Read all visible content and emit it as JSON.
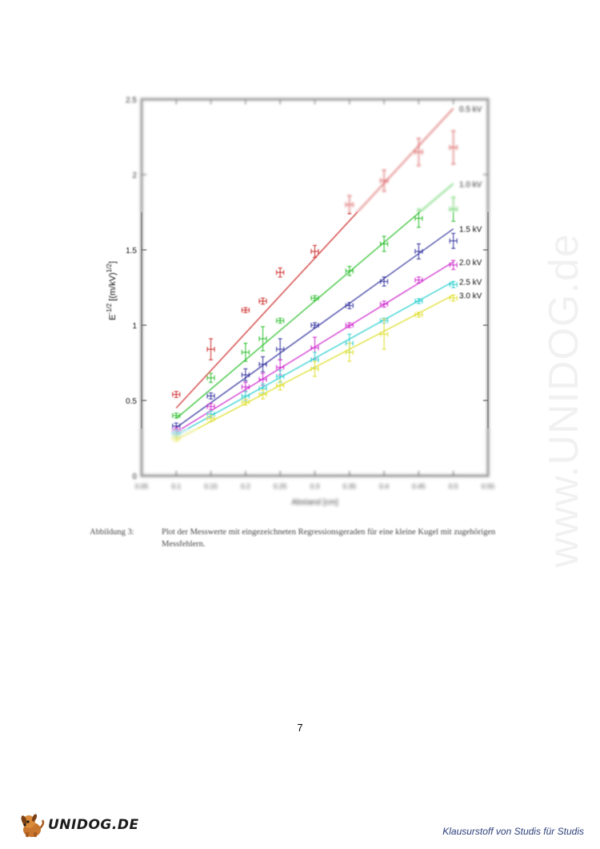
{
  "chart_data": {
    "type": "scatter",
    "xlabel": "Abstand [cm]",
    "ylabel": "E^(-1/2) [(m/kV)^(1/2)]",
    "xlim": [
      0.05,
      0.55
    ],
    "ylim": [
      0,
      2.5
    ],
    "xticks": [
      "0.05",
      "0.1",
      "0.15",
      "0.2",
      "0.25",
      "0.3",
      "0.35",
      "0.4",
      "0.45",
      "0.5",
      "0.55"
    ],
    "yticks": [
      "0",
      "0.5",
      "1",
      "1.5",
      "2",
      "2.5"
    ],
    "grid": false,
    "legend": "right, labels next to line ends",
    "series": [
      {
        "name": "0.5 kV",
        "color": "#cc2222",
        "x": [
          0.1,
          0.15,
          0.2,
          0.225,
          0.25,
          0.3,
          0.35,
          0.4,
          0.45,
          0.5
        ],
        "y": [
          0.54,
          0.84,
          1.1,
          1.16,
          1.35,
          1.49,
          1.8,
          1.96,
          2.15,
          2.18
        ],
        "yerr": [
          0.02,
          0.07,
          0.01,
          0.02,
          0.03,
          0.04,
          0.06,
          0.07,
          0.09,
          0.11
        ],
        "fit": [
          [
            0.1,
            0.45
          ],
          [
            0.5,
            2.44
          ]
        ]
      },
      {
        "name": "1.0 kV",
        "color": "#22bb22",
        "x": [
          0.1,
          0.15,
          0.2,
          0.225,
          0.25,
          0.3,
          0.35,
          0.4,
          0.45,
          0.5
        ],
        "y": [
          0.4,
          0.65,
          0.82,
          0.91,
          1.03,
          1.18,
          1.36,
          1.54,
          1.71,
          1.77
        ],
        "yerr": [
          0.01,
          0.03,
          0.06,
          0.08,
          0.01,
          0.01,
          0.03,
          0.05,
          0.06,
          0.08
        ],
        "fit": [
          [
            0.1,
            0.38
          ],
          [
            0.5,
            1.94
          ]
        ]
      },
      {
        "name": "1.5 kV",
        "color": "#2a2a9a",
        "x": [
          0.1,
          0.15,
          0.2,
          0.225,
          0.25,
          0.3,
          0.35,
          0.4,
          0.45,
          0.5
        ],
        "y": [
          0.33,
          0.53,
          0.67,
          0.74,
          0.84,
          1.0,
          1.13,
          1.29,
          1.49,
          1.56
        ],
        "yerr": [
          0.02,
          0.02,
          0.04,
          0.05,
          0.07,
          0.01,
          0.02,
          0.03,
          0.05,
          0.05
        ],
        "fit": [
          [
            0.1,
            0.32
          ],
          [
            0.5,
            1.64
          ]
        ]
      },
      {
        "name": "2.0 kV",
        "color": "#cc22cc",
        "x": [
          0.1,
          0.15,
          0.2,
          0.225,
          0.25,
          0.3,
          0.35,
          0.4,
          0.45,
          0.5
        ],
        "y": [
          0.3,
          0.46,
          0.59,
          0.64,
          0.72,
          0.85,
          1.0,
          1.14,
          1.3,
          1.4
        ],
        "yerr": [
          0.02,
          0.02,
          0.03,
          0.04,
          0.05,
          0.07,
          0.01,
          0.02,
          0.02,
          0.03
        ],
        "fit": [
          [
            0.1,
            0.29
          ],
          [
            0.5,
            1.42
          ]
        ]
      },
      {
        "name": "2.5 kV",
        "color": "#22cccc",
        "x": [
          0.1,
          0.15,
          0.2,
          0.225,
          0.25,
          0.3,
          0.35,
          0.4,
          0.45,
          0.5
        ],
        "y": [
          0.28,
          0.41,
          0.53,
          0.58,
          0.66,
          0.77,
          0.88,
          1.03,
          1.16,
          1.27
        ],
        "yerr": [
          0.02,
          0.02,
          0.03,
          0.03,
          0.04,
          0.05,
          0.06,
          0.01,
          0.01,
          0.02
        ],
        "fit": [
          [
            0.1,
            0.27
          ],
          [
            0.5,
            1.29
          ]
        ]
      },
      {
        "name": "3.0 kV",
        "color": "#dddd22",
        "x": [
          0.1,
          0.15,
          0.2,
          0.225,
          0.25,
          0.3,
          0.35,
          0.4,
          0.45,
          0.5
        ],
        "y": [
          0.25,
          0.38,
          0.49,
          0.54,
          0.6,
          0.71,
          0.82,
          0.94,
          1.07,
          1.18
        ],
        "yerr": [
          0.02,
          0.02,
          0.02,
          0.03,
          0.03,
          0.05,
          0.06,
          0.1,
          0.01,
          0.02
        ],
        "fit": [
          [
            0.1,
            0.24
          ],
          [
            0.5,
            1.2
          ]
        ]
      }
    ]
  },
  "caption": {
    "label": "Abbildung 3:",
    "text": "Plot der Messwerte mit eingezeichneten Regressionsgeraden für eine kleine Kugel mit zugehörigen Messfehlern."
  },
  "page_number": "7",
  "watermark": "www.UNIDOG.de",
  "footer": {
    "logo_text": "UNIDOG.DE",
    "tagline": "Klausurstoff von Studis für Studis"
  }
}
